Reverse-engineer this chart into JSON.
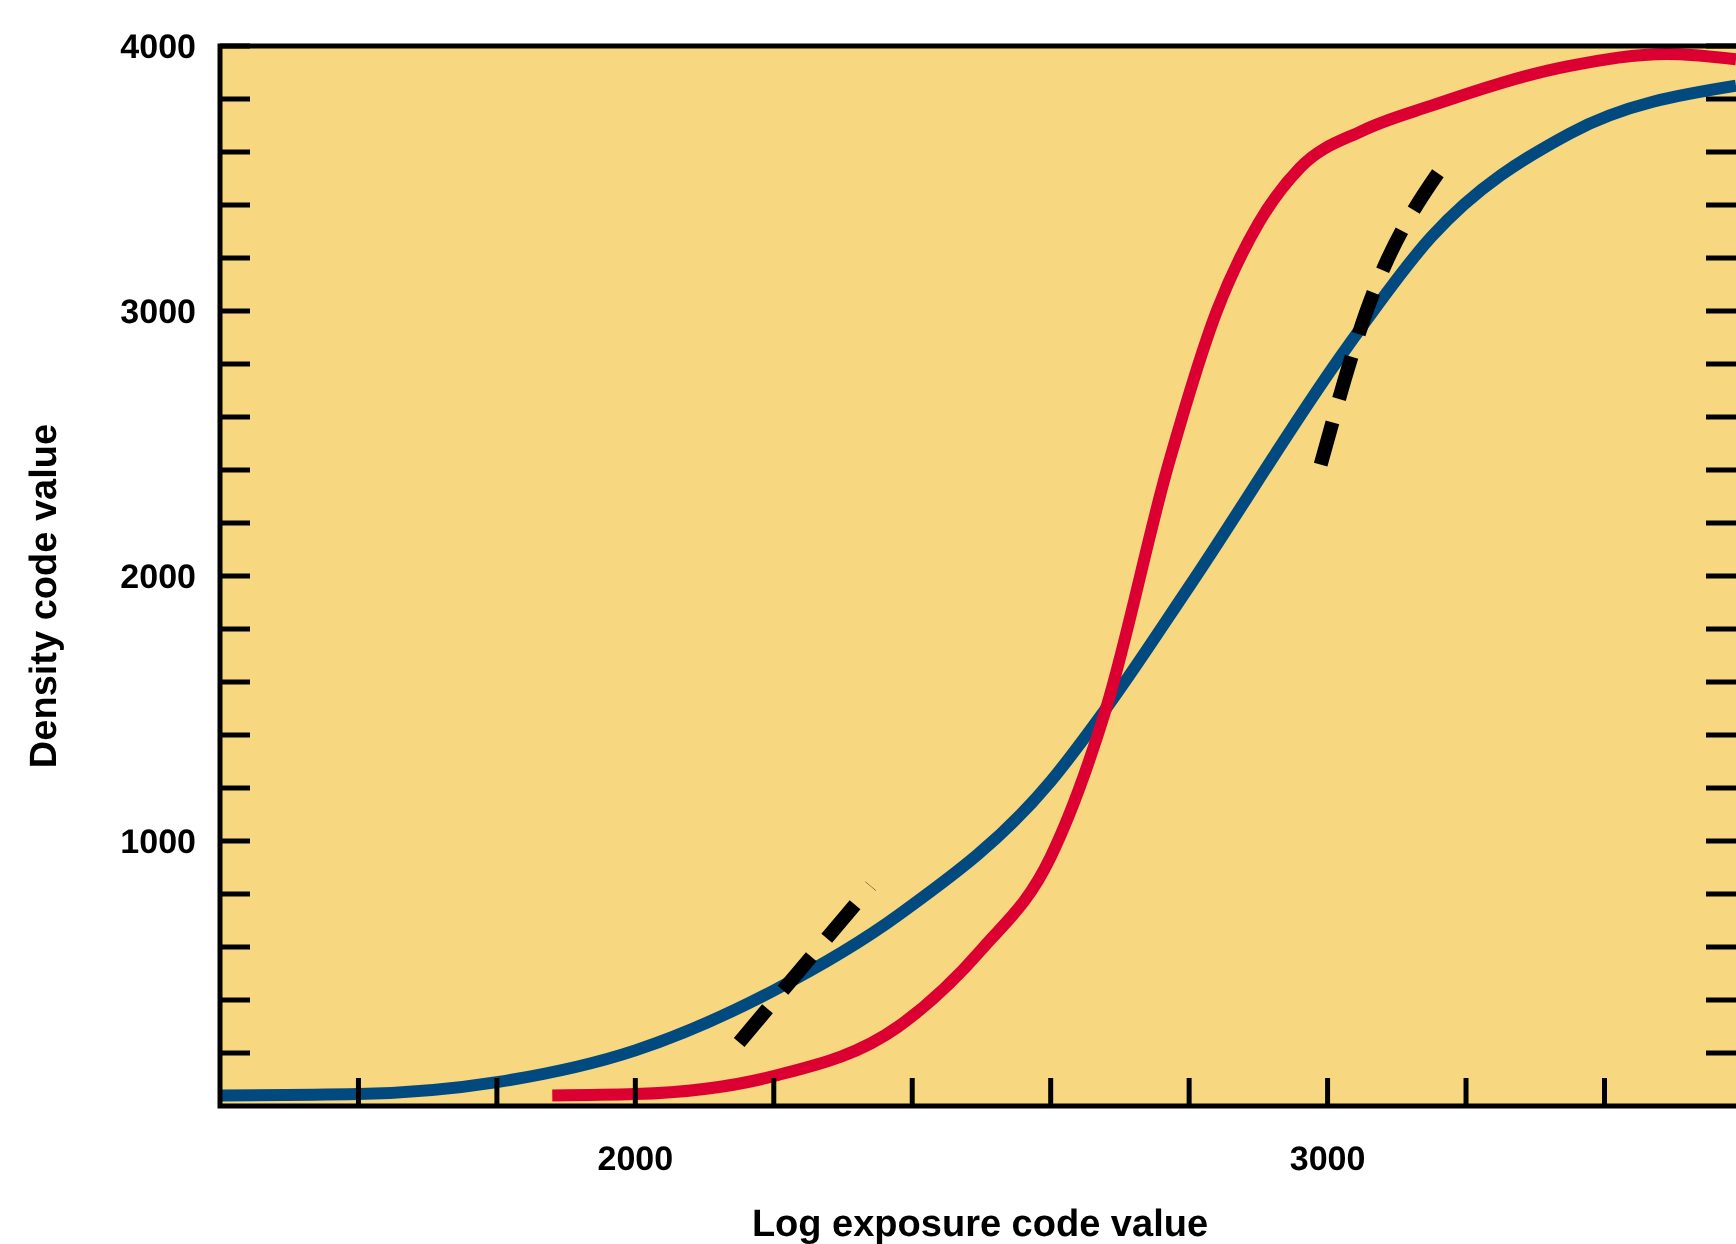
{
  "chart_data": {
    "type": "line",
    "xlabel": "Log exposure code value",
    "ylabel": "Density code value",
    "xlim": [
      1400,
      3590
    ],
    "ylim": [
      0,
      4000
    ],
    "xticks": [
      {
        "value": 1600,
        "label": null
      },
      {
        "value": 1800,
        "label": null
      },
      2000,
      {
        "value": 2200,
        "label": null
      },
      {
        "value": 2400,
        "label": null
      },
      {
        "value": 2600,
        "label": null
      },
      {
        "value": 2800,
        "label": null
      },
      3000,
      {
        "value": 3200,
        "label": null
      },
      {
        "value": 3400,
        "label": null
      }
    ],
    "yticks": [
      {
        "value": 200,
        "label": null
      },
      {
        "value": 400,
        "label": null
      },
      {
        "value": 600,
        "label": null
      },
      {
        "value": 800,
        "label": null
      },
      1000,
      {
        "value": 1200,
        "label": null
      },
      {
        "value": 1400,
        "label": null
      },
      {
        "value": 1600,
        "label": null
      },
      {
        "value": 1800,
        "label": null
      },
      2000,
      {
        "value": 2200,
        "label": null
      },
      {
        "value": 2400,
        "label": null
      },
      {
        "value": 2600,
        "label": null
      },
      {
        "value": 2800,
        "label": null
      },
      3000,
      {
        "value": 3200,
        "label": null
      },
      {
        "value": 3400,
        "label": null
      },
      {
        "value": 3600,
        "label": null
      },
      {
        "value": 3800,
        "label": null
      },
      4000
    ],
    "grid": false,
    "marker": "none",
    "series": [
      {
        "color": "#004a80",
        "line_style": "solid",
        "x": [
          1400,
          1600,
          1800,
          2000,
          2200,
          2380,
          2600,
          2680,
          2800,
          3030,
          3150,
          3350,
          3590
        ],
        "values": [
          40,
          45,
          90,
          210,
          436,
          720,
          1225,
          1500,
          1960,
          2870,
          3280,
          3670,
          3850
        ]
      },
      {
        "color": "#dc0032",
        "line_style": "solid",
        "x": [
          1880,
          2000,
          2200,
          2380,
          2500,
          2600,
          2680,
          2770,
          2840,
          2900,
          2960,
          3050,
          3150,
          3350,
          3490,
          3590
        ],
        "values": [
          40,
          45,
          113,
          300,
          590,
          940,
          1500,
          2420,
          3000,
          3330,
          3540,
          3680,
          3775,
          3925,
          3970,
          3950
        ]
      },
      {
        "color": "#000000",
        "line_style": "dashed",
        "x": [
          2150,
          2340
        ],
        "values": [
          240,
          830
        ]
      },
      {
        "color": "#000000",
        "line_style": "dashed",
        "x": [
          2990,
          3055,
          3170
        ],
        "values": [
          2420,
          2990,
          3560
        ]
      }
    ]
  }
}
